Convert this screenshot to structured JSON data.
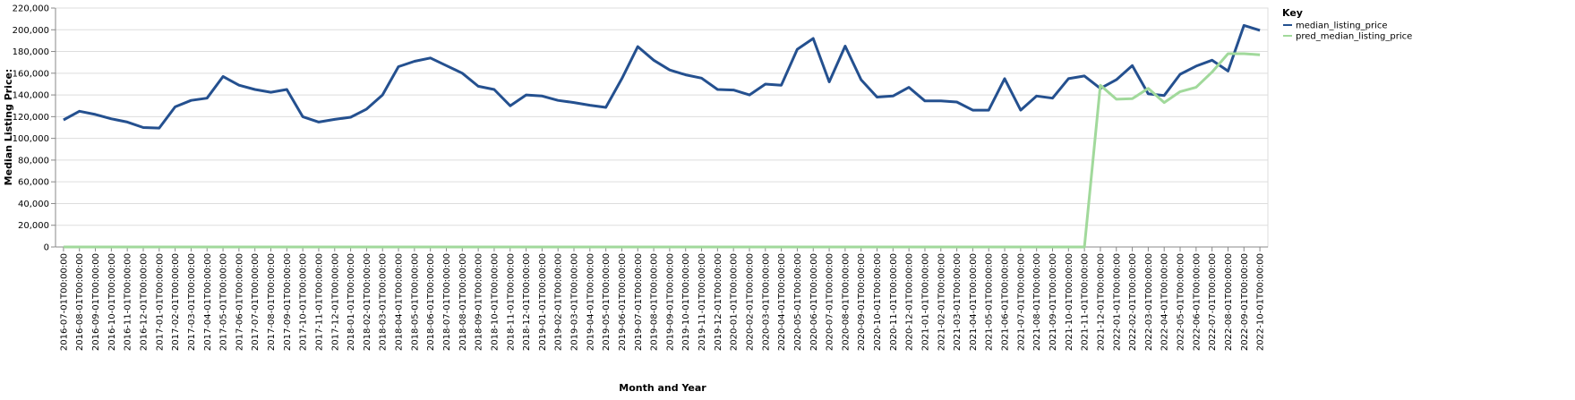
{
  "chart_data": {
    "type": "line",
    "x_label": "Month and Year",
    "y_label": "Median Listing Price:",
    "legend_title": "Key",
    "legend": "top-right",
    "grid": true,
    "categories": [
      "2016-07-01T00:00:00",
      "2016-08-01T00:00:00",
      "2016-09-01T00:00:00",
      "2016-10-01T00:00:00",
      "2016-11-01T00:00:00",
      "2016-12-01T00:00:00",
      "2017-01-01T00:00:00",
      "2017-02-01T00:00:00",
      "2017-03-01T00:00:00",
      "2017-04-01T00:00:00",
      "2017-05-01T00:00:00",
      "2017-06-01T00:00:00",
      "2017-07-01T00:00:00",
      "2017-08-01T00:00:00",
      "2017-09-01T00:00:00",
      "2017-10-01T00:00:00",
      "2017-11-01T00:00:00",
      "2017-12-01T00:00:00",
      "2018-01-01T00:00:00",
      "2018-02-01T00:00:00",
      "2018-03-01T00:00:00",
      "2018-04-01T00:00:00",
      "2018-05-01T00:00:00",
      "2018-06-01T00:00:00",
      "2018-07-01T00:00:00",
      "2018-08-01T00:00:00",
      "2018-09-01T00:00:00",
      "2018-10-01T00:00:00",
      "2018-11-01T00:00:00",
      "2018-12-01T00:00:00",
      "2019-01-01T00:00:00",
      "2019-02-01T00:00:00",
      "2019-03-01T00:00:00",
      "2019-04-01T00:00:00",
      "2019-05-01T00:00:00",
      "2019-06-01T00:00:00",
      "2019-07-01T00:00:00",
      "2019-08-01T00:00:00",
      "2019-09-01T00:00:00",
      "2019-10-01T00:00:00",
      "2019-11-01T00:00:00",
      "2019-12-01T00:00:00",
      "2020-01-01T00:00:00",
      "2020-02-01T00:00:00",
      "2020-03-01T00:00:00",
      "2020-04-01T00:00:00",
      "2020-05-01T00:00:00",
      "2020-06-01T00:00:00",
      "2020-07-01T00:00:00",
      "2020-08-01T00:00:00",
      "2020-09-01T00:00:00",
      "2020-10-01T00:00:00",
      "2020-11-01T00:00:00",
      "2020-12-01T00:00:00",
      "2021-01-01T00:00:00",
      "2021-02-01T00:00:00",
      "2021-03-01T00:00:00",
      "2021-04-01T00:00:00",
      "2021-05-01T00:00:00",
      "2021-06-01T00:00:00",
      "2021-07-01T00:00:00",
      "2021-08-01T00:00:00",
      "2021-09-01T00:00:00",
      "2021-10-01T00:00:00",
      "2021-11-01T00:00:00",
      "2021-12-01T00:00:00",
      "2022-01-01T00:00:00",
      "2022-02-01T00:00:00",
      "2022-03-01T00:00:00",
      "2022-04-01T00:00:00",
      "2022-05-01T00:00:00",
      "2022-06-01T00:00:00",
      "2022-07-01T00:00:00",
      "2022-08-01T00:00:00",
      "2022-09-01T00:00:00",
      "2022-10-01T00:00:00"
    ],
    "series": [
      {
        "name": "median_listing_price",
        "color": "#24508f",
        "values": [
          117000,
          125000,
          122000,
          118000,
          115000,
          110000,
          109500,
          129000,
          135000,
          137000,
          157000,
          149000,
          145000,
          142500,
          145000,
          120000,
          115000,
          117500,
          119500,
          127000,
          140000,
          166000,
          171000,
          174000,
          167000,
          160000,
          148000,
          145000,
          130000,
          140000,
          139000,
          135000,
          133000,
          130500,
          128500,
          155000,
          184500,
          172000,
          163000,
          158500,
          155500,
          145000,
          144500,
          140000,
          150000,
          149000,
          182000,
          192000,
          152000,
          185000,
          154000,
          138000,
          139000,
          147000,
          134500,
          134500,
          133500,
          126000,
          126000,
          155000,
          126000,
          139000,
          137000,
          155000,
          157500,
          146000,
          154000,
          167000,
          141000,
          139500,
          159000,
          166500,
          172000,
          162000,
          204000,
          199500
        ]
      },
      {
        "name": "pred_median_listing_price",
        "color": "#a1d99b",
        "values": [
          0,
          0,
          0,
          0,
          0,
          0,
          0,
          0,
          0,
          0,
          0,
          0,
          0,
          0,
          0,
          0,
          0,
          0,
          0,
          0,
          0,
          0,
          0,
          0,
          0,
          0,
          0,
          0,
          0,
          0,
          0,
          0,
          0,
          0,
          0,
          0,
          0,
          0,
          0,
          0,
          0,
          0,
          0,
          0,
          0,
          0,
          0,
          0,
          0,
          0,
          0,
          0,
          0,
          0,
          0,
          0,
          0,
          0,
          0,
          0,
          0,
          0,
          0,
          0,
          0,
          149000,
          136000,
          136500,
          146000,
          133000,
          143000,
          147000,
          161000,
          178000,
          178000,
          177000
        ]
      }
    ],
    "ylim": [
      0,
      220000
    ],
    "yticks": [
      0,
      {
        "value": 20000,
        "label": "20,000"
      },
      {
        "value": 40000,
        "label": "40,000"
      },
      {
        "value": 60000,
        "label": "60,000"
      },
      {
        "value": 80000,
        "label": "80,000"
      },
      {
        "value": 100000,
        "label": "100,000"
      },
      {
        "value": 120000,
        "label": "120,000"
      },
      {
        "value": 140000,
        "label": "140,000"
      },
      {
        "value": 160000,
        "label": "160,000"
      },
      {
        "value": 180000,
        "label": "180,000"
      },
      {
        "value": 200000,
        "label": "200,000"
      },
      {
        "value": 220000,
        "label": "220,000"
      }
    ]
  }
}
